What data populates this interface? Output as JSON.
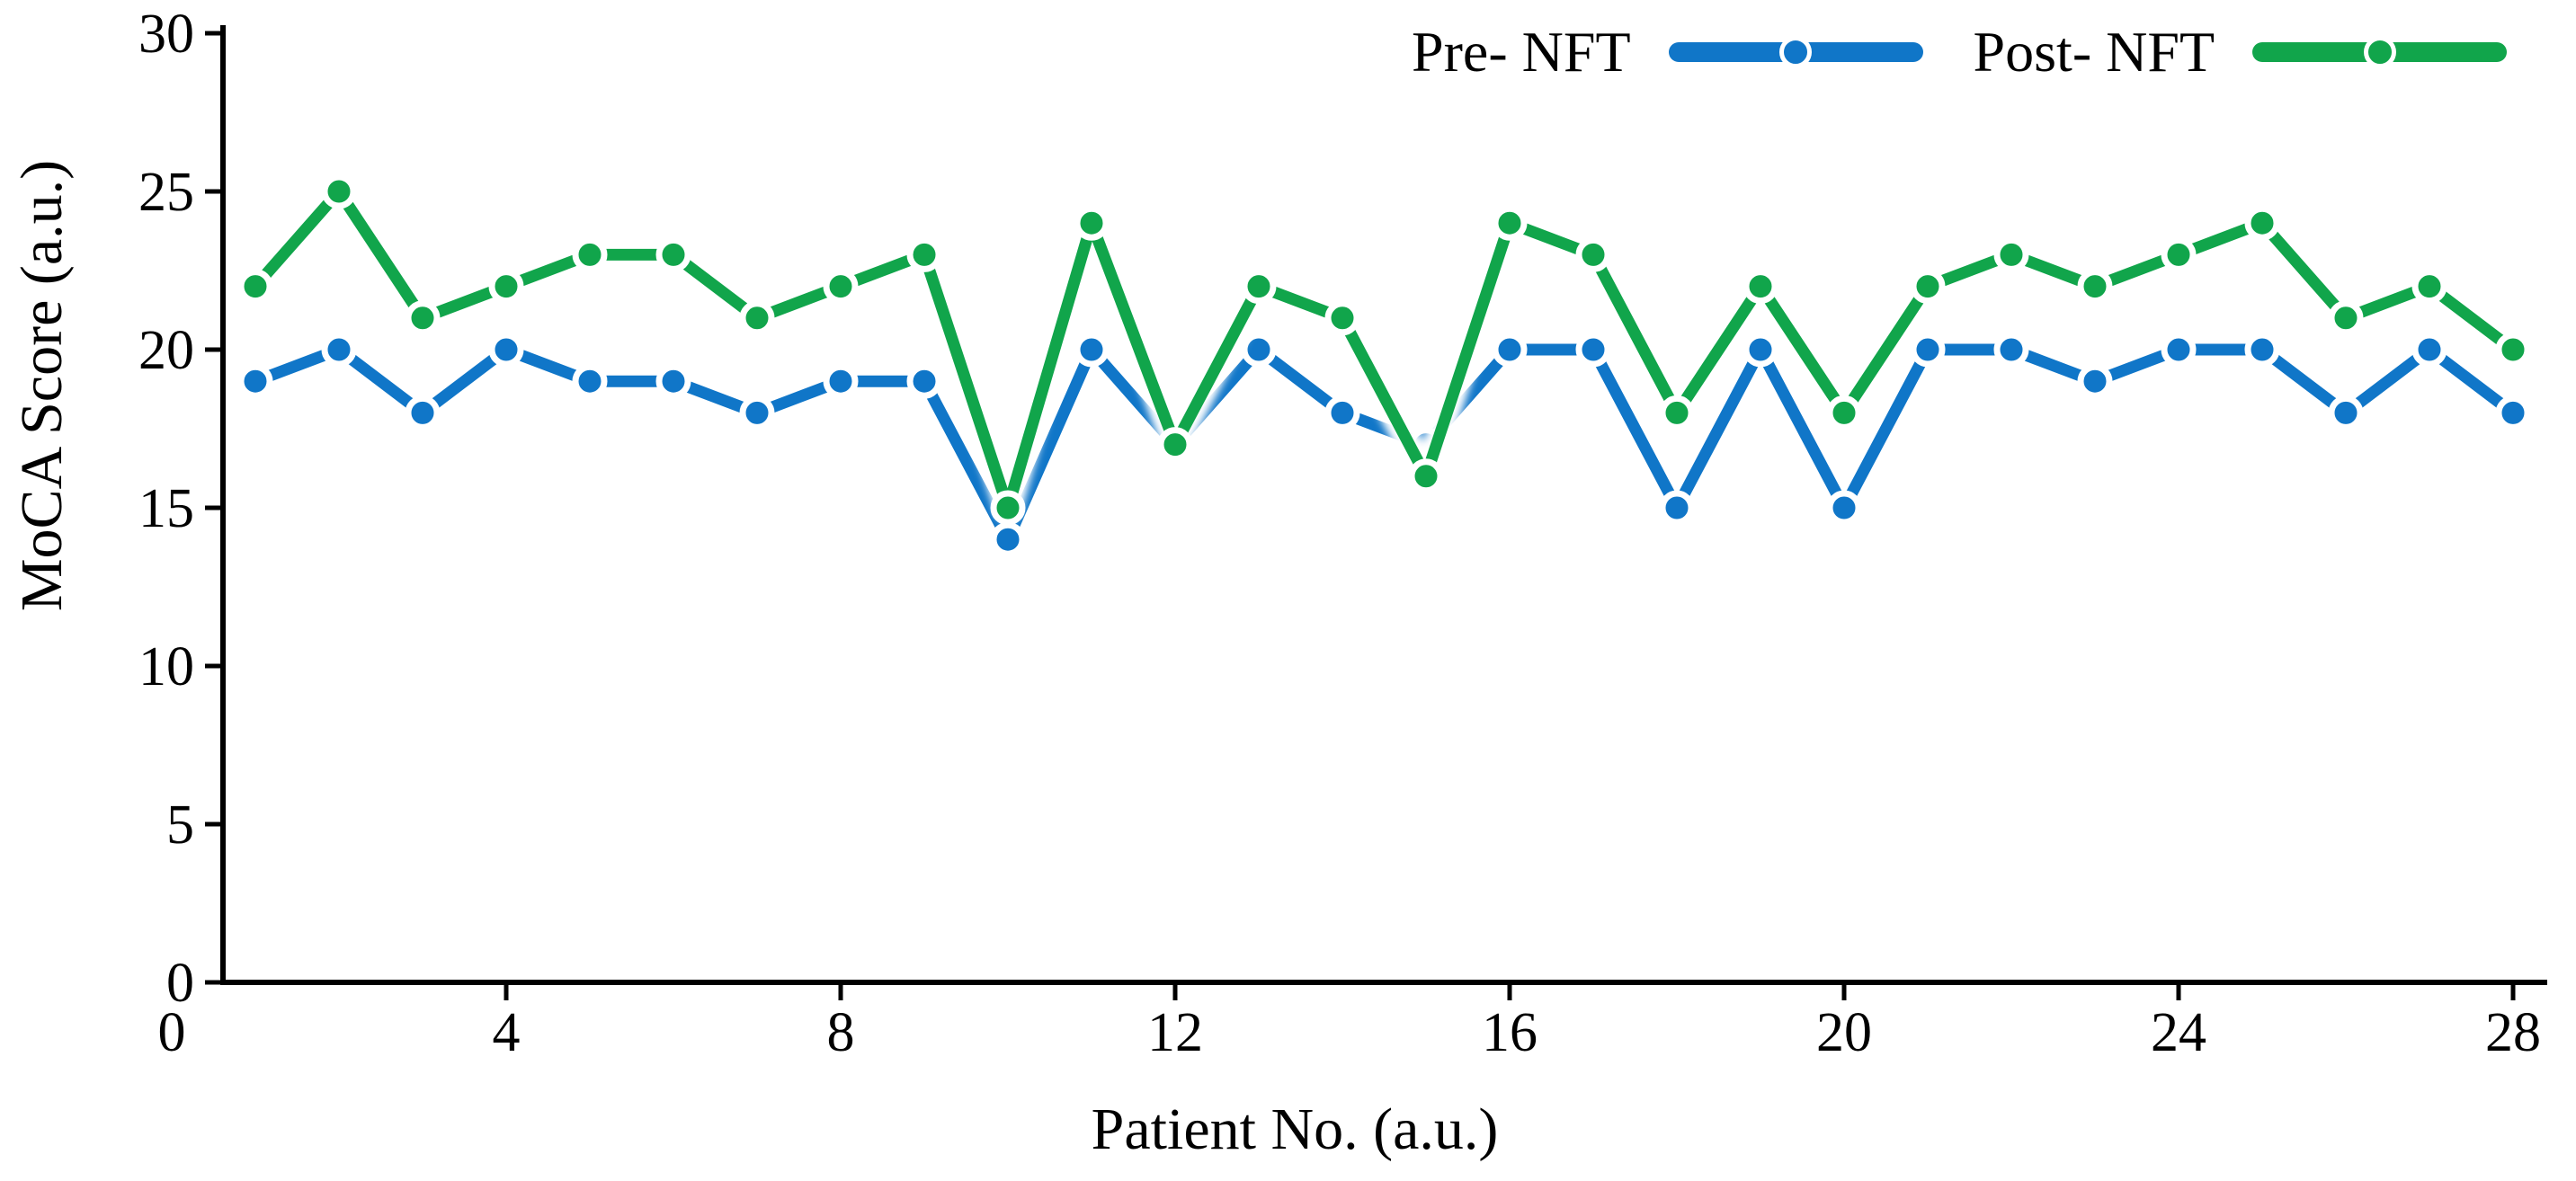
{
  "chart_data": {
    "type": "line",
    "title": "",
    "xlabel": "Patient No. (a.u.)",
    "ylabel": "MoCA Score (a.u.)",
    "x": [
      1,
      2,
      3,
      4,
      5,
      6,
      7,
      8,
      9,
      10,
      11,
      12,
      13,
      14,
      15,
      16,
      17,
      18,
      19,
      20,
      21,
      22,
      23,
      24,
      25,
      26,
      27,
      28
    ],
    "series": [
      {
        "name": "Pre- NFT",
        "color": "#1076c8",
        "values": [
          19,
          20,
          18,
          20,
          19,
          19,
          18,
          19,
          19,
          14,
          20,
          17,
          20,
          18,
          17,
          20,
          20,
          15,
          20,
          15,
          20,
          20,
          19,
          20,
          20,
          18,
          20,
          18
        ]
      },
      {
        "name": "Post- NFT",
        "color": "#11a54b",
        "values": [
          22,
          25,
          21,
          22,
          23,
          23,
          21,
          22,
          23,
          15,
          24,
          17,
          22,
          21,
          16,
          24,
          23,
          18,
          22,
          18,
          22,
          23,
          22,
          23,
          24,
          21,
          22,
          20
        ]
      }
    ],
    "x_ticks": [
      0,
      4,
      8,
      12,
      16,
      20,
      24,
      28
    ],
    "y_ticks": [
      0,
      5,
      10,
      15,
      20,
      25,
      30
    ],
    "xlim": [
      0,
      28.4
    ],
    "ylim": [
      0,
      30
    ],
    "grid": false,
    "legend_position": "top-right",
    "marker": "circle"
  }
}
